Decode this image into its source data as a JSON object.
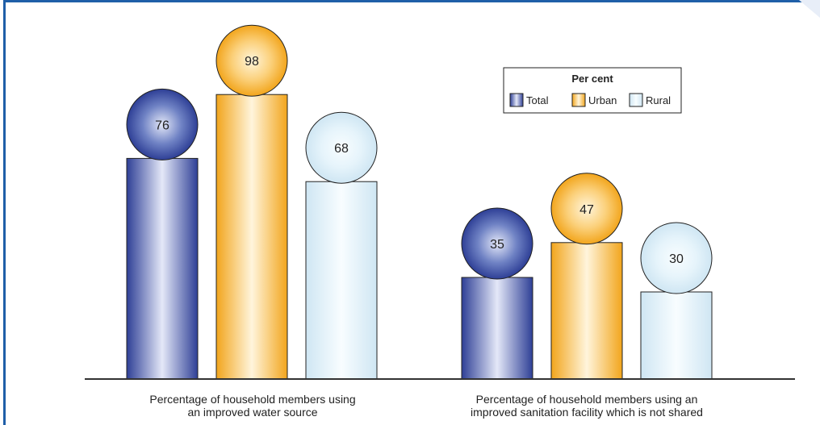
{
  "chart_data": {
    "type": "bar",
    "categories": [
      [
        "Percentage of household members using",
        "an improved water source"
      ],
      [
        "Percentage of household members using an",
        "improved sanitation facility which is not shared"
      ]
    ],
    "series": [
      {
        "name": "Total",
        "values": [
          76,
          35
        ]
      },
      {
        "name": "Urban",
        "values": [
          98,
          47
        ]
      },
      {
        "name": "Rural",
        "values": [
          68,
          30
        ]
      }
    ],
    "ylim": [
      0,
      100
    ],
    "legend": {
      "title": "Per cent",
      "placement": "top-right"
    },
    "grid": false,
    "colors": {
      "Total": {
        "dark": "#2e3f96",
        "mid": "#6f82c4",
        "light": "#e4e8f8"
      },
      "Urban": {
        "dark": "#f2a51c",
        "mid": "#fbd07a",
        "light": "#fff5dc"
      },
      "Rural": {
        "dark": "#cfe6f3",
        "mid": "#e6f4fb",
        "light": "#f8fdff"
      }
    }
  }
}
